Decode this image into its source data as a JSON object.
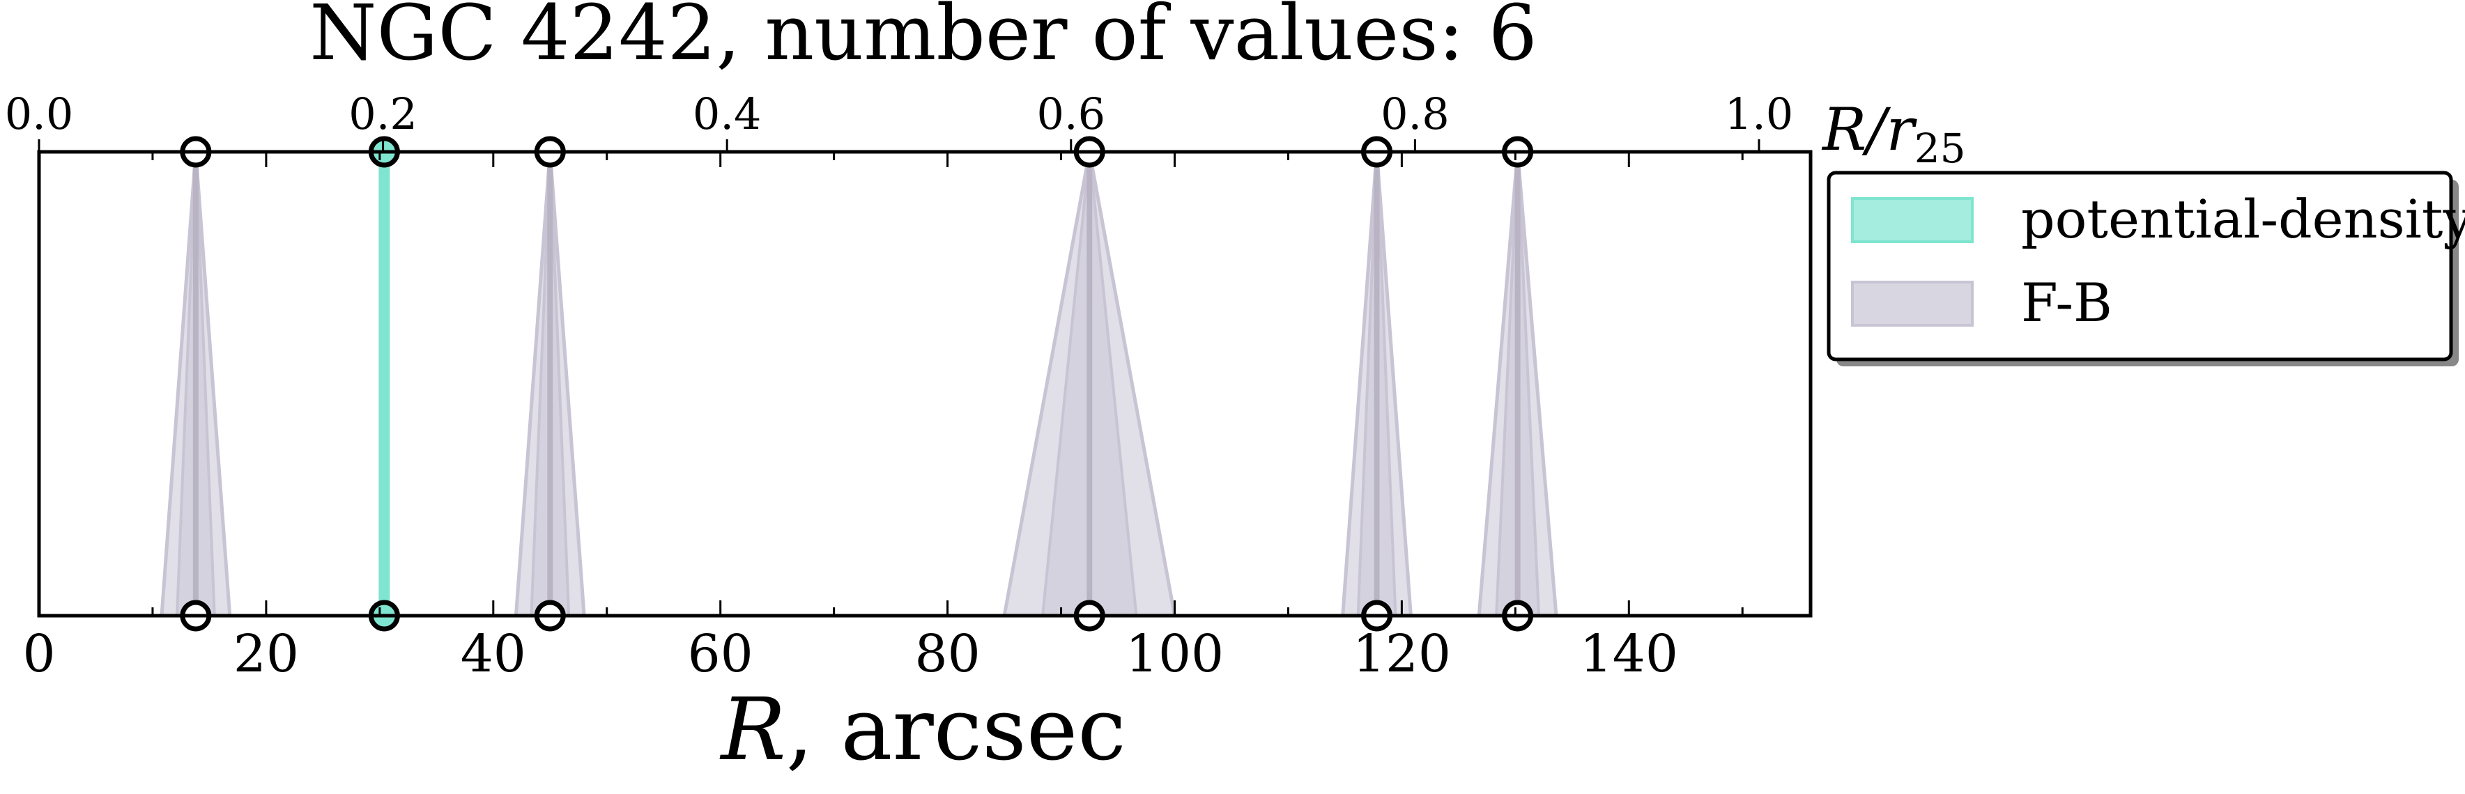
{
  "chart_data": {
    "type": "line",
    "title": "NGC 4242, number of values: 6",
    "xlabel_italic": "R",
    "xlabel_rest": ", arcsec",
    "top_axis_label_main": "R/r",
    "top_axis_label_sub": "25",
    "xlim": [
      0,
      156
    ],
    "xticks": [
      0,
      20,
      40,
      60,
      80,
      100,
      120,
      140
    ],
    "top_xlim": [
      0,
      1.03
    ],
    "top_xticks": [
      "0.0",
      "0.2",
      "0.4",
      "0.6",
      "0.8",
      "1.0"
    ],
    "top_xtick_values": [
      0.0,
      0.2,
      0.4,
      0.6,
      0.8,
      1.0
    ],
    "series": [
      {
        "name": "potential-density",
        "color": "#7fe5d0",
        "marks": [
          {
            "x": 30.4,
            "err": 0
          }
        ]
      },
      {
        "name": "F-B",
        "color": "#c8c4d4",
        "marks": [
          {
            "x": 13.8,
            "err": 3.0
          },
          {
            "x": 45.0,
            "err": 3.0
          },
          {
            "x": 92.5,
            "err": 7.5
          },
          {
            "x": 117.8,
            "err": 3.0
          },
          {
            "x": 130.2,
            "err": 3.4
          }
        ]
      }
    ],
    "legend": {
      "placement": "right-outside",
      "entries": [
        "potential-density",
        "F-B"
      ]
    }
  }
}
